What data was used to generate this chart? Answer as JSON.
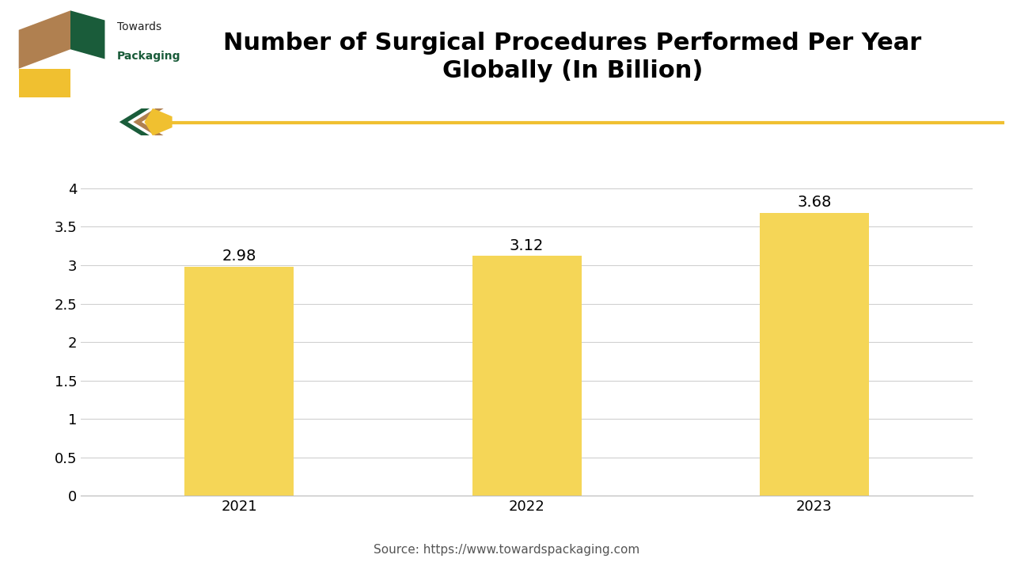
{
  "title": "Number of Surgical Procedures Performed Per Year\nGlobally (In Billion)",
  "categories": [
    "2021",
    "2022",
    "2023"
  ],
  "values": [
    2.98,
    3.12,
    3.68
  ],
  "bar_color": "#F5D657",
  "bar_width": 0.38,
  "ylim": [
    0,
    4.3
  ],
  "yticks": [
    0,
    0.5,
    1.0,
    1.5,
    2.0,
    2.5,
    3.0,
    3.5,
    4.0
  ],
  "value_labels": [
    "2.98",
    "3.12",
    "3.68"
  ],
  "source_text": "Source: https://www.towardspackaging.com",
  "background_color": "#ffffff",
  "plot_bg_color": "#ffffff",
  "title_fontsize": 22,
  "label_fontsize": 14,
  "tick_fontsize": 13,
  "source_fontsize": 11,
  "grid_color": "#d0d0d0",
  "accent_line_color": "#F0C030",
  "logo_green": "#1a5c3a",
  "logo_yellow": "#F0C030",
  "logo_brown": "#b08050",
  "chevron_green": "#1a5c3a",
  "chevron_yellow": "#F0C030",
  "chevron_brown": "#b08050",
  "logo_text_towards_color": "#222222",
  "logo_text_packaging_color": "#1a5c3a"
}
